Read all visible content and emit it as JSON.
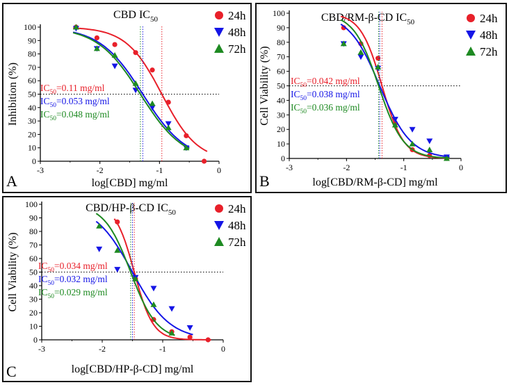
{
  "colors": {
    "h24": "#e8202a",
    "h48": "#1515e6",
    "h72": "#1e8a22",
    "axis": "#000000"
  },
  "chart_data": [
    {
      "panel": "A",
      "type": "scatter",
      "title_main": "CBD IC",
      "title_sub": "50",
      "ylabel": "Inhibition (%)",
      "xlabel": "log[CBD] mg/ml",
      "xlim": [
        -3,
        0
      ],
      "ylim": [
        0,
        100
      ],
      "xticks": [
        "-3",
        "-2",
        "-1",
        "0"
      ],
      "yticks": [
        "0",
        "10",
        "20",
        "30",
        "40",
        "50",
        "60",
        "70",
        "80",
        "90",
        "100"
      ],
      "hline": 50,
      "series": [
        {
          "name": "24h",
          "color_key": "h24",
          "marker": "circle",
          "ic50_log": -0.96,
          "hill": -1.45,
          "top": 100,
          "bottom": 0,
          "ic50_label_pre": "IC",
          "ic50_label_sub": "50",
          "ic50_label_post": "=0.11 mg/ml",
          "points": [
            [
              -2.4,
              100
            ],
            [
              -2.05,
              92
            ],
            [
              -1.75,
              87
            ],
            [
              -1.4,
              81
            ],
            [
              -1.12,
              68
            ],
            [
              -0.85,
              44
            ],
            [
              -0.55,
              19
            ],
            [
              -0.25,
              0
            ]
          ]
        },
        {
          "name": "48h",
          "color_key": "h48",
          "marker": "triangle-down",
          "ic50_log": -1.28,
          "hill": -1.2,
          "top": 100,
          "bottom": 0,
          "ic50_label_pre": "IC",
          "ic50_label_sub": "50",
          "ic50_label_post": "=0.053 mg/ml",
          "points": [
            [
              -2.4,
              99
            ],
            [
              -2.05,
              84
            ],
            [
              -1.75,
              71
            ],
            [
              -1.4,
              53
            ],
            [
              -1.12,
              40
            ],
            [
              -0.85,
              28
            ],
            [
              -0.55,
              10
            ]
          ]
        },
        {
          "name": "72h",
          "color_key": "h72",
          "marker": "triangle-up",
          "ic50_log": -1.32,
          "hill": -1.2,
          "top": 100,
          "bottom": 0,
          "ic50_label_pre": "IC",
          "ic50_label_sub": "50",
          "ic50_label_post": "=0.048 mg/ml",
          "points": [
            [
              -2.4,
              100
            ],
            [
              -2.05,
              84
            ],
            [
              -1.75,
              79
            ],
            [
              -1.4,
              58
            ],
            [
              -1.12,
              43
            ],
            [
              -0.85,
              25
            ],
            [
              -0.55,
              10
            ]
          ]
        }
      ]
    },
    {
      "panel": "B",
      "type": "scatter",
      "title_main": "CBD/RM-β-CD IC",
      "title_sub": "50",
      "ylabel": "Cell Viability (%)",
      "xlabel": "log[CBD/RM-β-CD] mg/ml",
      "xlim": [
        -3,
        0
      ],
      "ylim": [
        0,
        100
      ],
      "xticks": [
        "-3",
        "-2",
        "-1",
        "0"
      ],
      "yticks": [
        "0",
        "10",
        "20",
        "30",
        "40",
        "50",
        "60",
        "70",
        "80",
        "90",
        "100"
      ],
      "hline": 50,
      "series": [
        {
          "name": "24h",
          "color_key": "h24",
          "marker": "circle",
          "ic50_log": -1.38,
          "hill": 2.3,
          "top": 100,
          "bottom": 0,
          "ic50_label_pre": "IC",
          "ic50_label_sub": "50",
          "ic50_label_post": "=0.042 mg/ml",
          "points": [
            [
              -2.05,
              90
            ],
            [
              -1.75,
              79
            ],
            [
              -1.45,
              69
            ],
            [
              -1.15,
              24
            ],
            [
              -0.85,
              6
            ],
            [
              -0.55,
              2
            ],
            [
              -0.25,
              0
            ]
          ]
        },
        {
          "name": "48h",
          "color_key": "h48",
          "marker": "triangle-down",
          "ic50_log": -1.42,
          "hill": 1.6,
          "top": 100,
          "bottom": 0,
          "ic50_label_pre": "IC",
          "ic50_label_sub": "50",
          "ic50_label_post": "=0.038 mg/ml",
          "points": [
            [
              -2.05,
              79
            ],
            [
              -1.75,
              70
            ],
            [
              -1.45,
              62
            ],
            [
              -1.15,
              27
            ],
            [
              -0.85,
              20
            ],
            [
              -0.55,
              12
            ],
            [
              -0.25,
              1
            ]
          ]
        },
        {
          "name": "72h",
          "color_key": "h72",
          "marker": "triangle-up",
          "ic50_log": -1.44,
          "hill": 2.0,
          "top": 100,
          "bottom": 0,
          "ic50_label_pre": "IC",
          "ic50_label_sub": "50",
          "ic50_label_post": "=0.036 mg/ml",
          "points": [
            [
              -2.05,
              79
            ],
            [
              -1.75,
              73
            ],
            [
              -1.45,
              63
            ],
            [
              -1.15,
              23
            ],
            [
              -0.85,
              10
            ],
            [
              -0.55,
              6
            ],
            [
              -0.25,
              0
            ]
          ]
        }
      ]
    },
    {
      "panel": "C",
      "type": "scatter",
      "title_main": "CBD/HP-β-CD IC",
      "title_sub": "50",
      "ylabel": "Cell Viability (%)",
      "xlabel": "log[CBD/HP-β-CD] mg/ml",
      "xlim": [
        -3,
        0
      ],
      "ylim": [
        0,
        100
      ],
      "xticks": [
        "-3",
        "-2",
        "-1",
        "0"
      ],
      "yticks": [
        "0",
        "10",
        "20",
        "30",
        "40",
        "50",
        "60",
        "70",
        "80",
        "90",
        "100"
      ],
      "hline": 50,
      "series": [
        {
          "name": "24h",
          "color_key": "h24",
          "marker": "circle",
          "ic50_log": -1.47,
          "hill": 2.8,
          "top": 100,
          "bottom": 0,
          "ic50_label_pre": "IC",
          "ic50_label_sub": "50",
          "ic50_label_post": "=0.034 mg/ml",
          "points": [
            [
              -1.75,
              87
            ],
            [
              -1.45,
              45
            ],
            [
              -1.15,
              15
            ],
            [
              -0.85,
              6
            ],
            [
              -0.55,
              2
            ],
            [
              -0.25,
              0
            ]
          ]
        },
        {
          "name": "48h",
          "color_key": "h48",
          "marker": "triangle-down",
          "ic50_log": -1.5,
          "hill": 1.4,
          "top": 100,
          "bottom": 0,
          "ic50_label_pre": "IC",
          "ic50_label_sub": "50",
          "ic50_label_post": "=0.032 mg/ml",
          "points": [
            [
              -2.05,
              67
            ],
            [
              -1.75,
              52
            ],
            [
              -1.45,
              46
            ],
            [
              -1.15,
              38
            ],
            [
              -0.85,
              23
            ],
            [
              -0.55,
              9
            ]
          ]
        },
        {
          "name": "72h",
          "color_key": "h72",
          "marker": "triangle-up",
          "ic50_log": -1.53,
          "hill": 2.0,
          "top": 100,
          "bottom": 0,
          "ic50_label_pre": "IC",
          "ic50_label_sub": "50",
          "ic50_label_post": "=0.029 mg/ml",
          "points": [
            [
              -2.05,
              84
            ],
            [
              -1.75,
              66
            ],
            [
              -1.45,
              45
            ],
            [
              -1.15,
              26
            ],
            [
              -0.85,
              5
            ]
          ]
        }
      ]
    }
  ]
}
